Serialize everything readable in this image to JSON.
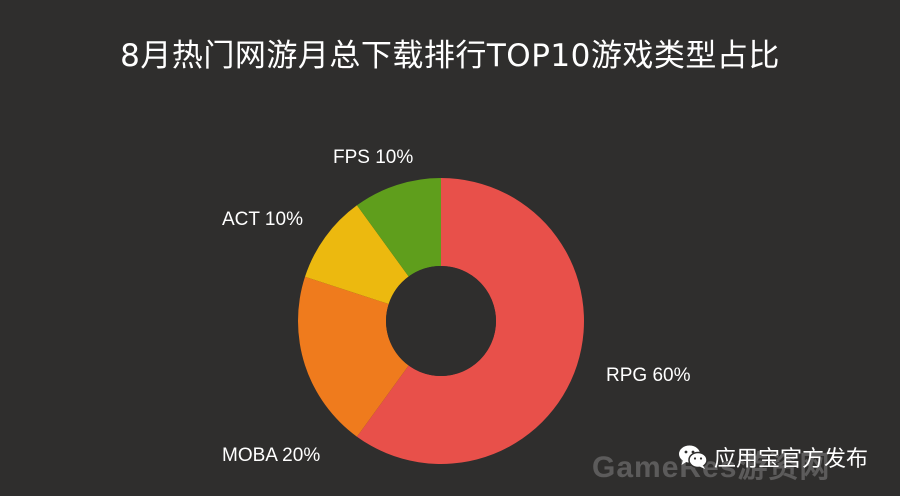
{
  "title": "8月热门网游月总下载排行TOP10游戏类型占比",
  "chart_data": {
    "type": "pie",
    "title": "8月热门网游月总下载排行TOP10游戏类型占比",
    "donut": true,
    "slices": [
      {
        "name": "RPG",
        "value": 60,
        "label": "RPG 60%",
        "color": "#e8504a"
      },
      {
        "name": "MOBA",
        "value": 20,
        "label": "MOBA 20%",
        "color": "#ef7b1d"
      },
      {
        "name": "ACT",
        "value": 10,
        "label": "ACT 10%",
        "color": "#ecb90f"
      },
      {
        "name": "FPS",
        "value": 10,
        "label": "FPS 10%",
        "color": "#5f9e1c"
      }
    ]
  },
  "footer": {
    "publisher": "应用宝官方发布",
    "watermark": "GameRes游资网",
    "icon": "wechat-icon"
  }
}
